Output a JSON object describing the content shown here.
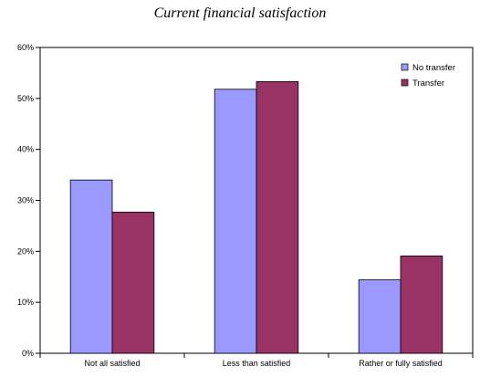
{
  "chart_data": {
    "type": "bar",
    "title": "Current financial satisfaction",
    "categories": [
      "Not all satisfied",
      "Less than satisfied",
      "Rather or fully satisfied"
    ],
    "series": [
      {
        "name": "No transfer",
        "values": [
          34,
          51.8,
          14.4
        ]
      },
      {
        "name": "Transfer",
        "values": [
          27.7,
          53.3,
          19.1
        ]
      }
    ],
    "ylim": [
      0,
      60
    ],
    "yticks": [
      0,
      10,
      20,
      30,
      40,
      50,
      60
    ],
    "ytick_labels": [
      "0%",
      "10%",
      "20%",
      "30%",
      "40%",
      "50%",
      "60%"
    ],
    "grid": false,
    "legend_position": "top-right",
    "colors": [
      "#9999ff",
      "#993366"
    ]
  }
}
